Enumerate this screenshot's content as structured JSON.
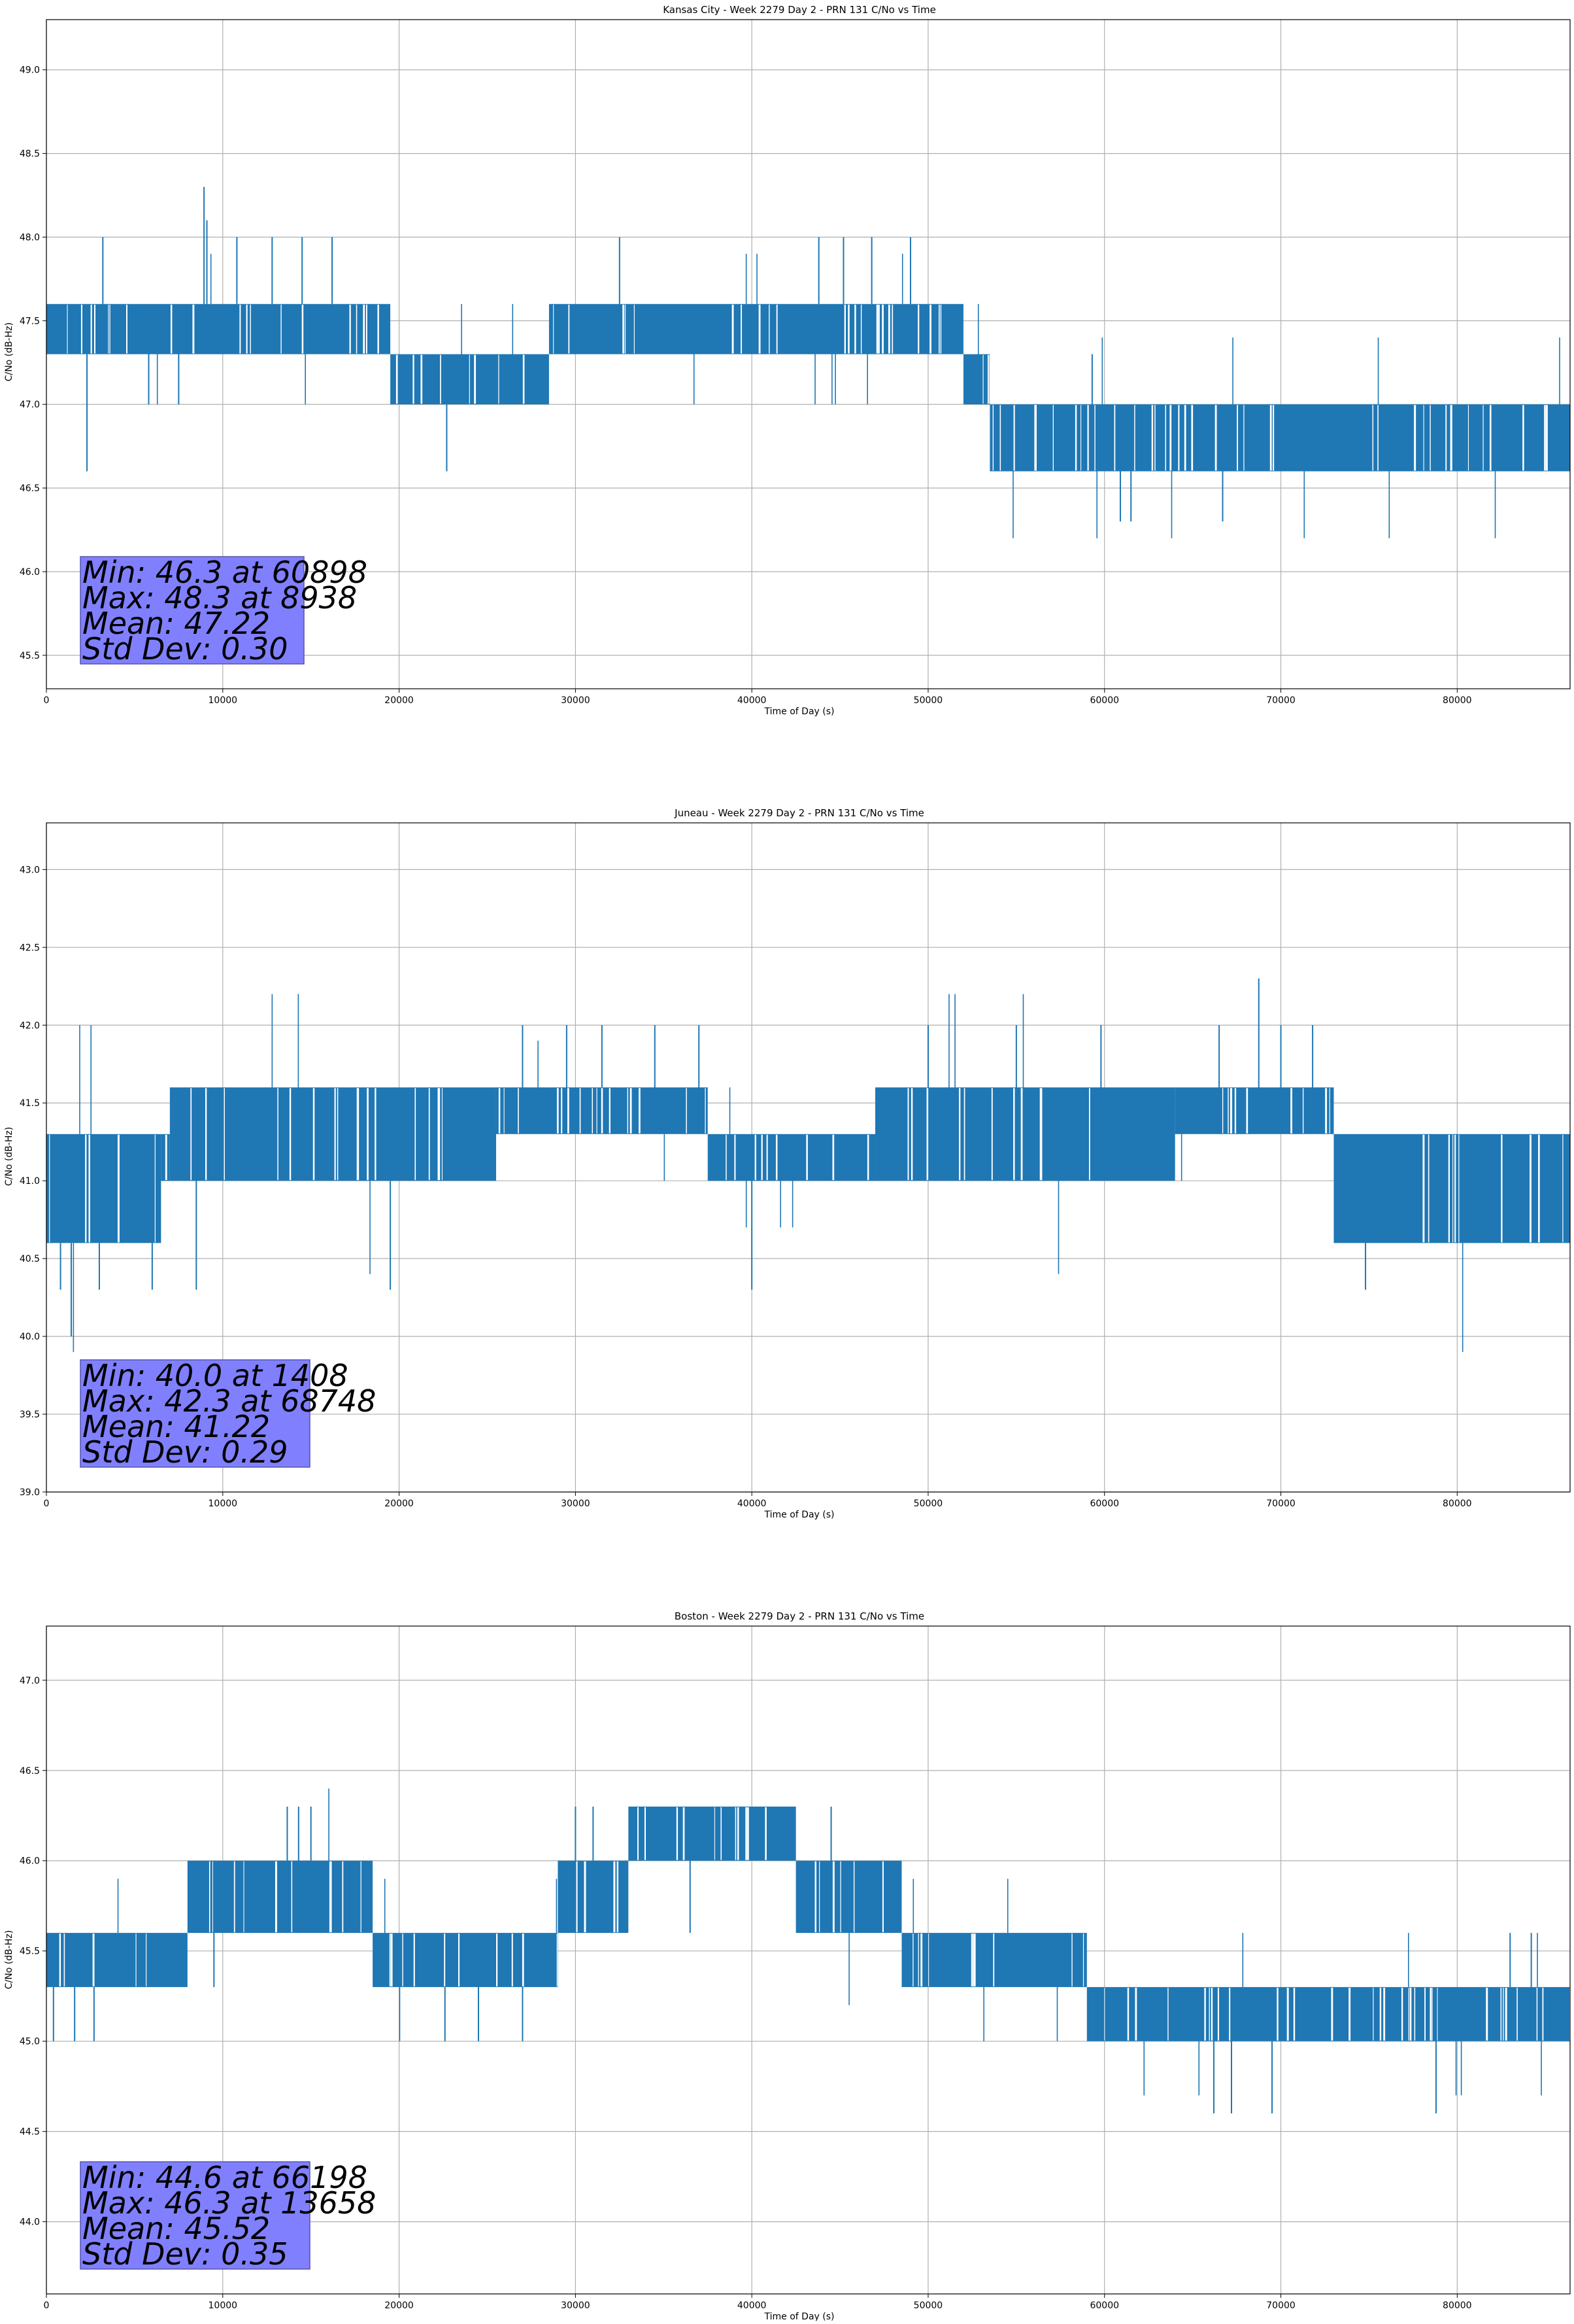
{
  "colors": {
    "series": "#1f77b4",
    "grid": "#b0b0b0",
    "stats_box": "#8080ff",
    "stats_box_edge": "#5555aa"
  },
  "chart_data": [
    {
      "type": "line",
      "title": "Kansas City - Week 2279 Day 2 - PRN 131 C/No vs Time",
      "xlabel": "Time of Day (s)",
      "ylabel": "C/No (dB-Hz)",
      "xlim": [
        0,
        86400
      ],
      "ylim": [
        45.3,
        49.3
      ],
      "xticks": [
        0,
        10000,
        20000,
        30000,
        40000,
        50000,
        60000,
        70000,
        80000
      ],
      "yticks": [
        "45.5",
        "46.0",
        "46.5",
        "47.0",
        "47.5",
        "48.0",
        "48.5",
        "49.0"
      ],
      "grid": true,
      "segments": [
        {
          "x": [
            0,
            19500
          ],
          "y": [
            47.3,
            47.6
          ]
        },
        {
          "x": [
            19500,
            28500
          ],
          "y": [
            47.0,
            47.3
          ]
        },
        {
          "x": [
            28500,
            52000
          ],
          "y": [
            47.3,
            47.6
          ]
        },
        {
          "x": [
            52000,
            53500
          ],
          "y": [
            47.0,
            47.3
          ]
        },
        {
          "x": [
            53500,
            86400
          ],
          "y": [
            46.6,
            47.0
          ]
        }
      ],
      "spikes": [
        {
          "x": 2300,
          "y": 46.6
        },
        {
          "x": 3200,
          "y": 48.0
        },
        {
          "x": 8938,
          "y": 48.3
        },
        {
          "x": 9100,
          "y": 48.1
        },
        {
          "x": 10800,
          "y": 48.0
        },
        {
          "x": 12800,
          "y": 48.0
        },
        {
          "x": 14500,
          "y": 48.0
        },
        {
          "x": 16200,
          "y": 48.0
        },
        {
          "x": 22700,
          "y": 46.6
        },
        {
          "x": 32500,
          "y": 48.0
        },
        {
          "x": 43800,
          "y": 48.0
        },
        {
          "x": 45200,
          "y": 48.0
        },
        {
          "x": 46800,
          "y": 48.0
        },
        {
          "x": 49000,
          "y": 48.0
        },
        {
          "x": 59300,
          "y": 47.3
        },
        {
          "x": 60898,
          "y": 46.3
        },
        {
          "x": 61500,
          "y": 46.3
        },
        {
          "x": 66700,
          "y": 46.3
        },
        {
          "x": 7500,
          "y": 47.0
        },
        {
          "x": 5800,
          "y": 47.0
        }
      ],
      "stats": [
        "Min: 46.3 at 60898",
        "Max: 48.3 at 8938",
        "Mean: 47.22",
        "Std Dev: 0.30"
      ]
    },
    {
      "type": "line",
      "title": "Juneau - Week 2279 Day 2 - PRN 131 C/No vs Time",
      "xlabel": "Time of Day (s)",
      "ylabel": "C/No (dB-Hz)",
      "xlim": [
        0,
        86400
      ],
      "ylim": [
        39.0,
        43.3
      ],
      "xticks": [
        0,
        10000,
        20000,
        30000,
        40000,
        50000,
        60000,
        70000,
        80000
      ],
      "yticks": [
        "39.0",
        "39.5",
        "40.0",
        "40.5",
        "41.0",
        "41.5",
        "42.0",
        "42.5",
        "43.0"
      ],
      "grid": true,
      "segments": [
        {
          "x": [
            0,
            6500
          ],
          "y": [
            40.6,
            41.3
          ]
        },
        {
          "x": 6500,
          "y": [
            41.0,
            41.3
          ],
          "x_end": 7000
        },
        {
          "x": [
            7000,
            25500
          ],
          "y": [
            41.0,
            41.6
          ]
        },
        {
          "x": [
            25500,
            37500
          ],
          "y": [
            41.3,
            41.6
          ]
        },
        {
          "x": [
            37500,
            47000
          ],
          "y": [
            41.0,
            41.3
          ]
        },
        {
          "x": [
            47000,
            64000
          ],
          "y": [
            41.0,
            41.6
          ]
        },
        {
          "x": [
            64000,
            73000
          ],
          "y": [
            41.3,
            41.6
          ]
        },
        {
          "x": [
            73000,
            86400
          ],
          "y": [
            40.6,
            41.3
          ]
        }
      ],
      "spikes": [
        {
          "x": 1408,
          "y": 40.0
        },
        {
          "x": 800,
          "y": 40.3
        },
        {
          "x": 3000,
          "y": 40.3
        },
        {
          "x": 6000,
          "y": 40.3
        },
        {
          "x": 8500,
          "y": 40.3
        },
        {
          "x": 19500,
          "y": 40.3
        },
        {
          "x": 40000,
          "y": 40.3
        },
        {
          "x": 74800,
          "y": 40.3
        },
        {
          "x": 68748,
          "y": 42.3
        },
        {
          "x": 27000,
          "y": 42.0
        },
        {
          "x": 29500,
          "y": 42.0
        },
        {
          "x": 31500,
          "y": 42.0
        },
        {
          "x": 34500,
          "y": 42.0
        },
        {
          "x": 37000,
          "y": 42.0
        },
        {
          "x": 50000,
          "y": 42.0
        },
        {
          "x": 55000,
          "y": 42.0
        },
        {
          "x": 59800,
          "y": 42.0
        },
        {
          "x": 66500,
          "y": 42.0
        },
        {
          "x": 70000,
          "y": 42.0
        },
        {
          "x": 71800,
          "y": 42.0
        }
      ],
      "stats": [
        "Min: 40.0 at 1408",
        "Max: 42.3 at 68748",
        "Mean: 41.22",
        "Std Dev: 0.29"
      ]
    },
    {
      "type": "line",
      "title": "Boston - Week 2279 Day 2 - PRN 131 C/No vs Time",
      "xlabel": "Time of Day (s)",
      "ylabel": "C/No (dB-Hz)",
      "xlim": [
        0,
        86400
      ],
      "ylim": [
        43.6,
        47.3
      ],
      "xticks": [
        0,
        10000,
        20000,
        30000,
        40000,
        50000,
        60000,
        70000,
        80000
      ],
      "yticks": [
        "44.0",
        "44.5",
        "45.0",
        "45.5",
        "46.0",
        "46.5",
        "47.0"
      ],
      "grid": true,
      "segments": [
        {
          "x": [
            0,
            8000
          ],
          "y": [
            45.3,
            45.6
          ]
        },
        {
          "x": [
            8000,
            18500
          ],
          "y": [
            45.6,
            46.0
          ]
        },
        {
          "x": [
            18500,
            29000
          ],
          "y": [
            45.3,
            45.6
          ]
        },
        {
          "x": [
            29000,
            33000
          ],
          "y": [
            45.6,
            46.0
          ]
        },
        {
          "x": [
            33000,
            42500
          ],
          "y": [
            46.0,
            46.3
          ]
        },
        {
          "x": [
            42500,
            48500
          ],
          "y": [
            45.6,
            46.0
          ]
        },
        {
          "x": [
            48500,
            59000
          ],
          "y": [
            45.3,
            45.6
          ]
        },
        {
          "x": [
            59000,
            86400
          ],
          "y": [
            45.0,
            45.3
          ]
        }
      ],
      "spikes": [
        {
          "x": 400,
          "y": 45.0
        },
        {
          "x": 1600,
          "y": 45.0
        },
        {
          "x": 2700,
          "y": 45.0
        },
        {
          "x": 13658,
          "y": 46.3
        },
        {
          "x": 14300,
          "y": 46.3
        },
        {
          "x": 15000,
          "y": 46.3
        },
        {
          "x": 22600,
          "y": 45.0
        },
        {
          "x": 24500,
          "y": 45.0
        },
        {
          "x": 27000,
          "y": 45.0
        },
        {
          "x": 30000,
          "y": 46.3
        },
        {
          "x": 31000,
          "y": 46.3
        },
        {
          "x": 44500,
          "y": 46.3
        },
        {
          "x": 66198,
          "y": 44.6
        },
        {
          "x": 67200,
          "y": 44.6
        },
        {
          "x": 69500,
          "y": 44.6
        },
        {
          "x": 78800,
          "y": 44.6
        },
        {
          "x": 9500,
          "y": 45.3
        },
        {
          "x": 36500,
          "y": 45.6
        },
        {
          "x": 83000,
          "y": 45.6
        },
        {
          "x": 84200,
          "y": 45.6
        }
      ],
      "stats": [
        "Min: 44.6 at 66198",
        "Max: 46.3 at 13658",
        "Mean: 45.52",
        "Std Dev: 0.35"
      ]
    }
  ]
}
